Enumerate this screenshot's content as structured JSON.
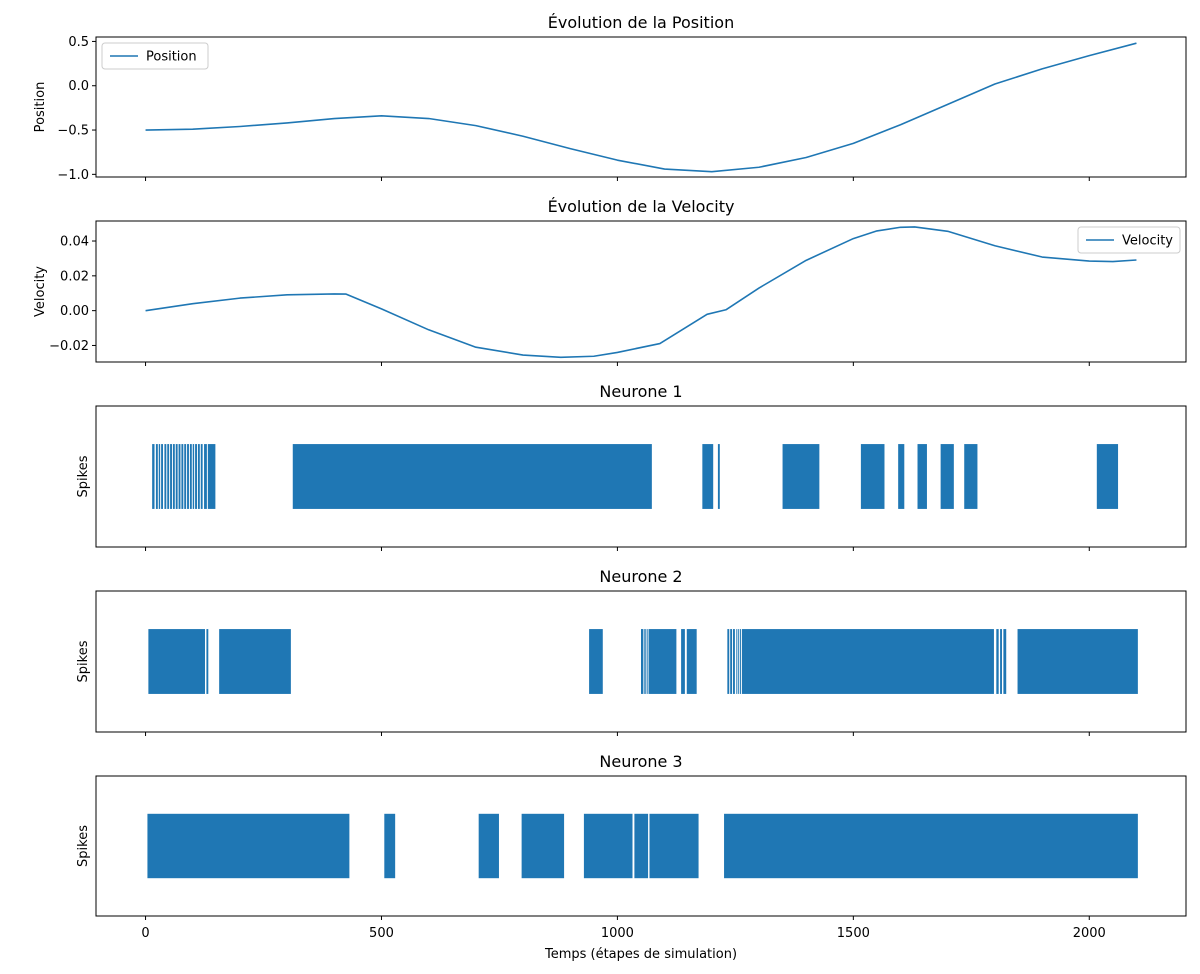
{
  "chart_data": [
    {
      "type": "line",
      "title": "Évolution de la Position",
      "ylabel": "Position",
      "xlim": [
        -105,
        2205
      ],
      "ylim": [
        -1.03,
        0.55
      ],
      "yticks": [
        0.5,
        0.0,
        -0.5,
        -1.0
      ],
      "ytick_labels": [
        "0.5",
        "0.0",
        "−0.5",
        "−1.0"
      ],
      "legend_position": "upper-left",
      "series": [
        {
          "name": "Position",
          "color": "#1f77b4",
          "x": [
            0,
            100,
            200,
            300,
            400,
            500,
            600,
            700,
            800,
            900,
            1000,
            1100,
            1200,
            1300,
            1400,
            1500,
            1600,
            1700,
            1800,
            1900,
            2000,
            2100
          ],
          "y": [
            -0.5,
            -0.49,
            -0.46,
            -0.42,
            -0.37,
            -0.34,
            -0.37,
            -0.45,
            -0.57,
            -0.71,
            -0.84,
            -0.94,
            -0.97,
            -0.92,
            -0.81,
            -0.65,
            -0.44,
            -0.21,
            0.02,
            0.19,
            0.34,
            0.48
          ]
        }
      ]
    },
    {
      "type": "line",
      "title": "Évolution de la Velocity",
      "ylabel": "Velocity",
      "xlim": [
        -105,
        2205
      ],
      "ylim": [
        -0.0295,
        0.0515
      ],
      "yticks": [
        0.04,
        0.02,
        0.0,
        -0.02
      ],
      "ytick_labels": [
        "0.04",
        "0.02",
        "0.00",
        "−0.02"
      ],
      "legend_position": "upper-right",
      "series": [
        {
          "name": "Velocity",
          "color": "#1f77b4",
          "x": [
            0,
            100,
            200,
            300,
            400,
            425,
            500,
            600,
            700,
            800,
            880,
            950,
            1000,
            1090,
            1190,
            1230,
            1300,
            1400,
            1500,
            1550,
            1600,
            1630,
            1700,
            1800,
            1900,
            2000,
            2050,
            2100
          ],
          "y": [
            0.0,
            0.004,
            0.0072,
            0.0091,
            0.0096,
            0.0095,
            0.001,
            -0.011,
            -0.021,
            -0.0255,
            -0.0268,
            -0.0262,
            -0.024,
            -0.0189,
            -0.0021,
            0.0005,
            0.013,
            0.0289,
            0.0414,
            0.0458,
            0.0479,
            0.0481,
            0.0456,
            0.0373,
            0.0308,
            0.0285,
            0.0282,
            0.0291
          ]
        }
      ]
    },
    {
      "type": "bar",
      "title": "Neurone 1",
      "ylabel": "Spikes",
      "xlim": [
        -105,
        2205
      ],
      "spike_intervals": [
        [
          14,
          19
        ],
        [
          22,
          26
        ],
        [
          28,
          31
        ],
        [
          33,
          37
        ],
        [
          40,
          44
        ],
        [
          46,
          50
        ],
        [
          52,
          56
        ],
        [
          58,
          62
        ],
        [
          64,
          68
        ],
        [
          70,
          74
        ],
        [
          76,
          80
        ],
        [
          82,
          86
        ],
        [
          88,
          92
        ],
        [
          94,
          98
        ],
        [
          100,
          103
        ],
        [
          105,
          109
        ],
        [
          111,
          115
        ],
        [
          117,
          121
        ],
        [
          124,
          130
        ],
        [
          132,
          148
        ],
        [
          312,
          1073
        ],
        [
          1180,
          1203
        ],
        [
          1213,
          1217
        ],
        [
          1350,
          1428
        ],
        [
          1516,
          1566
        ],
        [
          1595,
          1608
        ],
        [
          1636,
          1656
        ],
        [
          1685,
          1713
        ],
        [
          1735,
          1763
        ],
        [
          2016,
          2061
        ]
      ]
    },
    {
      "type": "bar",
      "title": "Neurone 2",
      "ylabel": "Spikes",
      "xlim": [
        -105,
        2205
      ],
      "spike_intervals": [
        [
          6,
          126
        ],
        [
          129,
          133
        ],
        [
          156,
          308
        ],
        [
          940,
          969
        ],
        [
          1050,
          1055
        ],
        [
          1057,
          1060
        ],
        [
          1062,
          1064
        ],
        [
          1066,
          1125
        ],
        [
          1135,
          1143
        ],
        [
          1147,
          1168
        ],
        [
          1233,
          1237
        ],
        [
          1239,
          1243
        ],
        [
          1245,
          1249
        ],
        [
          1252,
          1254
        ],
        [
          1256,
          1257
        ],
        [
          1260,
          1262
        ],
        [
          1264,
          1798
        ],
        [
          1803,
          1808
        ],
        [
          1811,
          1815
        ],
        [
          1818,
          1824
        ],
        [
          1848,
          2103
        ]
      ]
    },
    {
      "type": "bar",
      "title": "Neurone 3",
      "ylabel": "Spikes",
      "xlabel": "Temps (étapes de simulation)",
      "xlim": [
        -105,
        2205
      ],
      "xticks": [
        0,
        500,
        1000,
        1500,
        2000
      ],
      "xtick_labels": [
        "0",
        "500",
        "1000",
        "1500",
        "2000"
      ],
      "spike_intervals": [
        [
          4,
          432
        ],
        [
          506,
          529
        ],
        [
          706,
          749
        ],
        [
          797,
          887
        ],
        [
          929,
          1032
        ],
        [
          1036,
          1065
        ],
        [
          1068,
          1172
        ],
        [
          1226,
          2103
        ]
      ]
    }
  ]
}
